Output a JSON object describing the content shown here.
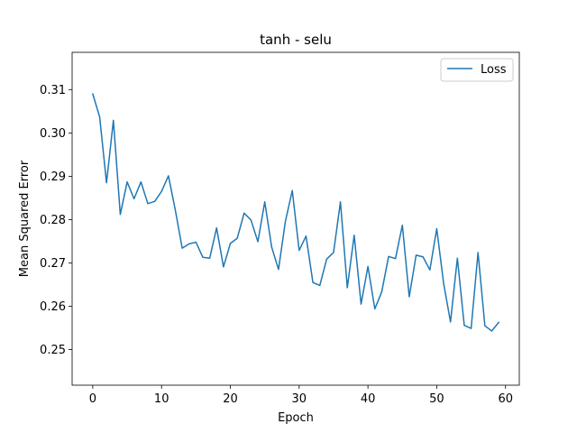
{
  "chart_data": {
    "type": "line",
    "title": "tanh - selu",
    "xlabel": "Epoch",
    "ylabel": "Mean Squared Error",
    "xlim": [
      -3,
      62
    ],
    "ylim": [
      0.2418,
      0.3186
    ],
    "xticks": [
      0,
      10,
      20,
      30,
      40,
      50,
      60
    ],
    "yticks": [
      0.25,
      0.26,
      0.27,
      0.28,
      0.29,
      0.3,
      0.31
    ],
    "xtick_labels": [
      "0",
      "10",
      "20",
      "30",
      "40",
      "50",
      "60"
    ],
    "ytick_labels": [
      "0.25",
      "0.26",
      "0.27",
      "0.28",
      "0.29",
      "0.30",
      "0.31"
    ],
    "grid": false,
    "legend_position": "upper right",
    "series": [
      {
        "name": "Loss",
        "color": "#1f77b4",
        "x": [
          0,
          1,
          2,
          3,
          4,
          5,
          6,
          7,
          8,
          9,
          10,
          11,
          12,
          13,
          14,
          15,
          16,
          17,
          18,
          19,
          20,
          21,
          22,
          23,
          24,
          25,
          26,
          27,
          28,
          29,
          30,
          31,
          32,
          33,
          34,
          35,
          36,
          37,
          38,
          39,
          40,
          41,
          42,
          43,
          44,
          45,
          46,
          47,
          48,
          49,
          50,
          51,
          52,
          53,
          54,
          55,
          56,
          57,
          58,
          59
        ],
        "y": [
          0.309,
          0.3037,
          0.2885,
          0.3029,
          0.2812,
          0.2887,
          0.2848,
          0.2887,
          0.2837,
          0.2842,
          0.2865,
          0.2901,
          0.2822,
          0.2734,
          0.2744,
          0.2748,
          0.2713,
          0.2711,
          0.2781,
          0.2691,
          0.2745,
          0.2757,
          0.2815,
          0.2799,
          0.2749,
          0.2841,
          0.2737,
          0.2685,
          0.2796,
          0.2867,
          0.2729,
          0.2762,
          0.2655,
          0.2648,
          0.2709,
          0.2724,
          0.2841,
          0.2643,
          0.2764,
          0.2605,
          0.2692,
          0.2594,
          0.2633,
          0.2715,
          0.271,
          0.2787,
          0.2622,
          0.2718,
          0.2714,
          0.2684,
          0.2779,
          0.2653,
          0.2564,
          0.2711,
          0.2556,
          0.2549,
          0.2724,
          0.2555,
          0.2543,
          0.2563
        ]
      }
    ]
  }
}
